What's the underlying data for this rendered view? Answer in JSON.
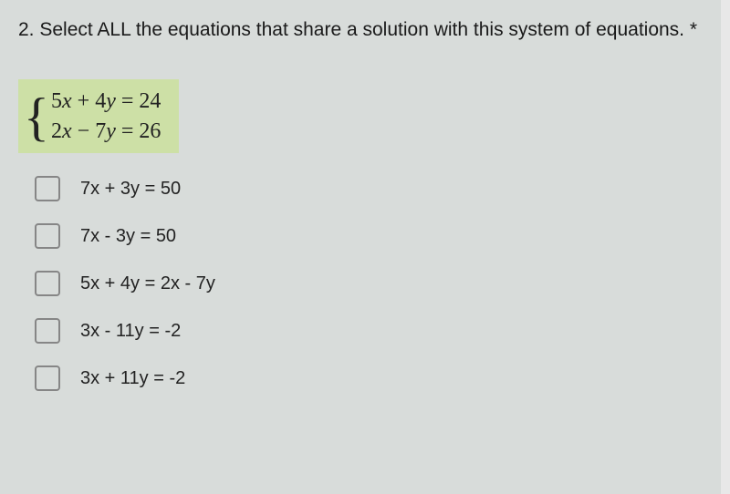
{
  "question": {
    "prefix": "2. ",
    "text": "Select ALL the equations that share a solution with this system of equations.",
    "required_marker": " *"
  },
  "system": {
    "eq1": "5x + 4y = 24",
    "eq2": "2x − 7y = 26",
    "highlight_color": "#cde0a6"
  },
  "options": [
    {
      "label": "7x + 3y = 50",
      "checked": false
    },
    {
      "label": "7x - 3y = 50",
      "checked": false
    },
    {
      "label": "5x + 4y = 2x - 7y",
      "checked": false
    },
    {
      "label": "3x - 11y = -2",
      "checked": false
    },
    {
      "label": "3x + 11y = -2",
      "checked": false
    }
  ],
  "styling": {
    "background_color": "#d8dcda",
    "question_fontsize": 21,
    "system_fontsize": 24,
    "option_fontsize": 20,
    "checkbox_border_color": "#868686",
    "text_color": "#222"
  }
}
